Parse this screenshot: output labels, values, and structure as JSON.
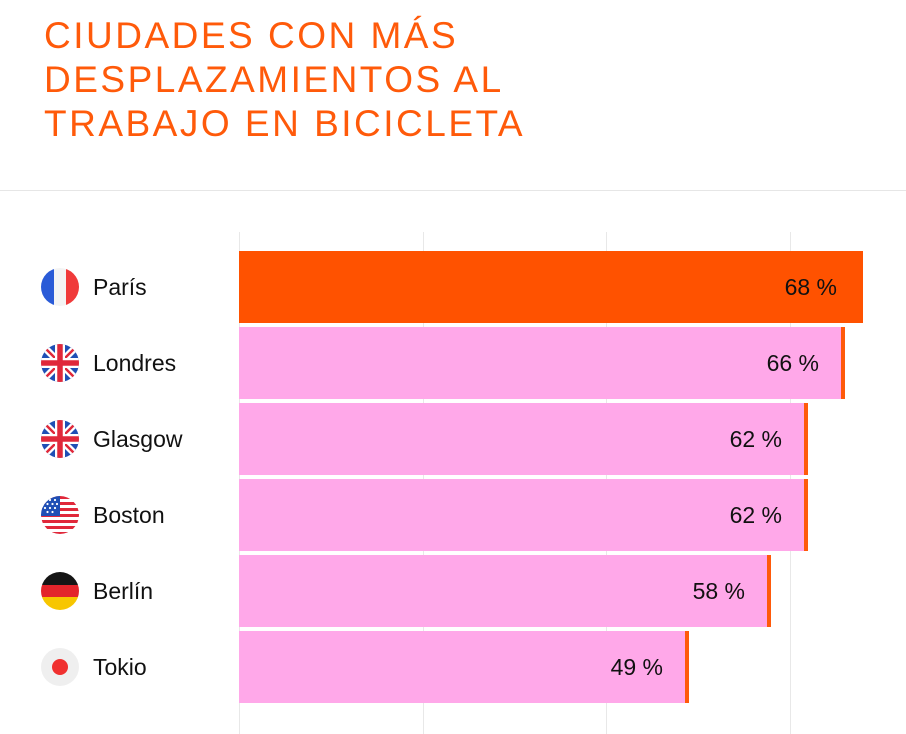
{
  "chart_data": {
    "type": "bar",
    "orientation": "horizontal",
    "title": "CIUDADES CON MÁS DESPLAZAMIENTOS AL TRABAJO EN BICICLETA",
    "categories": [
      "París",
      "Londres",
      "Glasgow",
      "Boston",
      "Berlín",
      "Tokio"
    ],
    "values": [
      68,
      66,
      62,
      62,
      58,
      49
    ],
    "value_labels": [
      "68 %",
      "66 %",
      "62 %",
      "62 %",
      "58 %",
      "49 %"
    ],
    "flags": [
      "france-flag-icon",
      "uk-flag-icon",
      "uk-flag-icon",
      "usa-flag-icon",
      "germany-flag-icon",
      "japan-flag-icon"
    ],
    "xlim": [
      0,
      68
    ],
    "grid": true,
    "colors": {
      "highlight": "#ff5200",
      "bar": "#ffa8e9",
      "accent": "#ff5a0a"
    }
  }
}
